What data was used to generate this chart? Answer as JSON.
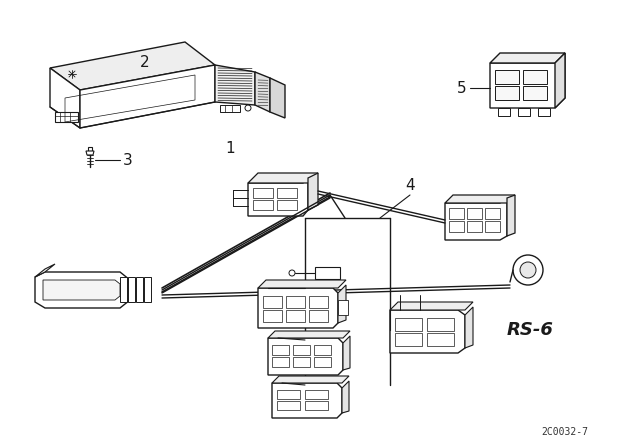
{
  "background_color": "#ffffff",
  "line_color": "#1a1a1a",
  "fig_width": 6.4,
  "fig_height": 4.48,
  "dpi": 100,
  "watermark": "2C0032-7",
  "rs_label": "RS-6"
}
